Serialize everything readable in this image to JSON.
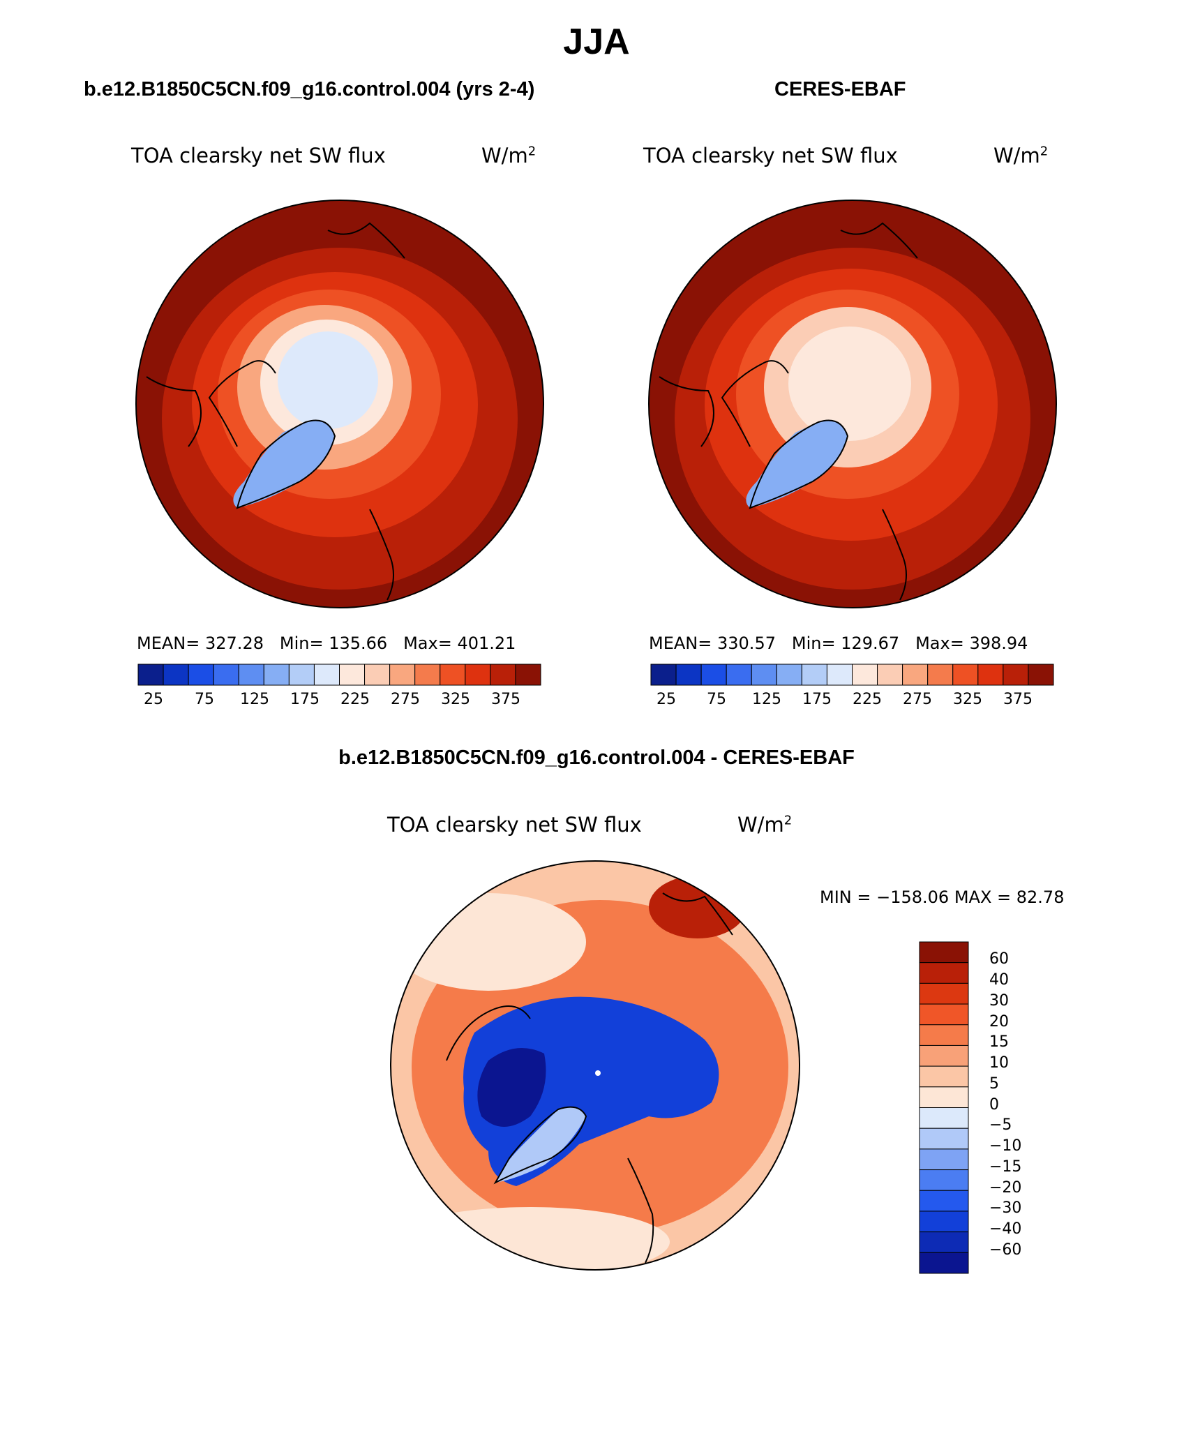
{
  "page": {
    "title": "JJA"
  },
  "colors": {
    "model_scale": [
      "#0b1f8c",
      "#0c35c4",
      "#1b4ee6",
      "#3a6df0",
      "#5e8ef2",
      "#86aef4",
      "#b3cdf7",
      "#dde9fb",
      "#fde8dc",
      "#fbcdb5",
      "#f9a77f",
      "#f47b4c",
      "#ee5124",
      "#de320f",
      "#b92008",
      "#8a1205"
    ],
    "diff_scale": [
      "#0b1590",
      "#0d2bb5",
      "#1240d9",
      "#2459ee",
      "#4b7df2",
      "#7ea3f4",
      "#b0c9f8",
      "#dce9fb",
      "#fde6d6",
      "#fbc6a6",
      "#f8a178",
      "#f57b4a",
      "#f05628",
      "#dc3811",
      "#b92008",
      "#8a1205"
    ]
  },
  "panels": [
    {
      "subtitle": "b.e12.B1850C5CN.f09_g16.control.004 (yrs 2-4)",
      "variable": "TOA clearsky net SW flux",
      "units": "W/m",
      "units_exp": "2",
      "stats": {
        "mean_label": "MEAN=",
        "mean": "327.28",
        "min_label": "Min=",
        "min": "135.66",
        "max_label": "Max=",
        "max": "401.21"
      },
      "colorbar_ticks": [
        "25",
        "75",
        "125",
        "175",
        "225",
        "275",
        "325",
        "375"
      ]
    },
    {
      "subtitle": "CERES-EBAF",
      "variable": "TOA clearsky net SW flux",
      "units": "W/m",
      "units_exp": "2",
      "stats": {
        "mean_label": "MEAN=",
        "mean": "330.57",
        "min_label": "Min=",
        "min": "129.67",
        "max_label": "Max=",
        "max": "398.94"
      },
      "colorbar_ticks": [
        "25",
        "75",
        "125",
        "175",
        "225",
        "275",
        "325",
        "375"
      ]
    }
  ],
  "difference": {
    "subtitle": "b.e12.B1850C5CN.f09_g16.control.004 - CERES-EBAF",
    "variable": "TOA clearsky net SW flux",
    "units": "W/m",
    "units_exp": "2",
    "minmax": "MIN = −158.06 MAX =  82.78",
    "colorbar_labels": [
      "60",
      "40",
      "30",
      "20",
      "15",
      "10",
      "5",
      "0",
      "−5",
      "−10",
      "−15",
      "−20",
      "−30",
      "−40",
      "−60"
    ]
  }
}
